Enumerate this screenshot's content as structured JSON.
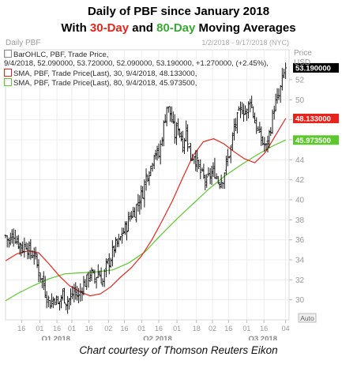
{
  "title": {
    "line1": "Daily of PBF since January 2018",
    "line2_pre": "With ",
    "line2_red": "30-Day",
    "line2_mid": " and ",
    "line2_green": "80-Day",
    "line2_post": " Moving Averages"
  },
  "header": {
    "symbol_label": "Daily PBF",
    "date_range": "1/2/2018 - 9/17/2018 (NYC)",
    "price_label": "Price",
    "currency_label": "USD"
  },
  "legend": {
    "bar_title": "BarOHLC, PBF, Trade Price,",
    "bar_values": "9/4/2018, 52.090000, 53.720000, 52.090000, 53.190000, +1.270000, (+2.45%),",
    "sma30": "SMA, PBF, Trade Price(Last), 30, 9/4/2018, 48.133000,",
    "sma80": "SMA, PBF, Trade Price(Last), 80, 9/4/2018, 45.973500,"
  },
  "colors": {
    "sma30": "#e8231b",
    "sma80": "#5cc82e",
    "bars": "#000000",
    "last_price_tag": "#000000"
  },
  "auto_label": "Auto",
  "caption": "Chart courtesy of Thomson Reuters Eikon",
  "chart_data": {
    "type": "ohlc",
    "y_ticks": [
      30,
      32,
      34,
      36,
      38,
      40,
      42,
      44,
      46,
      48,
      50,
      52
    ],
    "ylim": [
      28.0,
      55.0
    ],
    "x_ticks": [
      {
        "label": "16",
        "date": "2018-01-16"
      },
      {
        "label": "01",
        "date": "2018-02-01"
      },
      {
        "label": "16",
        "date": "2018-02-16"
      },
      {
        "label": "01",
        "date": "2018-03-01"
      },
      {
        "label": "16",
        "date": "2018-03-16"
      },
      {
        "label": "02",
        "date": "2018-04-02"
      },
      {
        "label": "16",
        "date": "2018-04-16"
      },
      {
        "label": "01",
        "date": "2018-05-01"
      },
      {
        "label": "16",
        "date": "2018-05-16"
      },
      {
        "label": "01",
        "date": "2018-06-01"
      },
      {
        "label": "18",
        "date": "2018-06-18"
      },
      {
        "label": "02",
        "date": "2018-07-02"
      },
      {
        "label": "16",
        "date": "2018-07-16"
      },
      {
        "label": "01",
        "date": "2018-08-01"
      },
      {
        "label": "16",
        "date": "2018-08-16"
      },
      {
        "label": "04",
        "date": "2018-09-04"
      }
    ],
    "quarters": [
      {
        "label": "Q1 2018",
        "date": "2018-02-15"
      },
      {
        "label": "Q2 2018",
        "date": "2018-05-15"
      },
      {
        "label": "Q3 2018",
        "date": "2018-08-15"
      }
    ],
    "price_tags": [
      {
        "name": "last",
        "value": 53.19,
        "label": "53.190000"
      },
      {
        "name": "sma30",
        "value": 48.133,
        "label": "48.133000"
      },
      {
        "name": "sma80",
        "value": 45.9735,
        "label": "45.973500"
      }
    ],
    "series": [
      {
        "name": "Trade Price (OHLC, approximate closes)",
        "points": [
          [
            "2018-01-02",
            36.4
          ],
          [
            "2018-01-05",
            35.8
          ],
          [
            "2018-01-09",
            36.6
          ],
          [
            "2018-01-12",
            35.9
          ],
          [
            "2018-01-17",
            35.2
          ],
          [
            "2018-01-20",
            35.6
          ],
          [
            "2018-01-24",
            34.5
          ],
          [
            "2018-01-27",
            34.7
          ],
          [
            "2018-01-31",
            32.8
          ],
          [
            "2018-02-03",
            32.0
          ],
          [
            "2018-02-07",
            30.4
          ],
          [
            "2018-02-10",
            29.6
          ],
          [
            "2018-02-14",
            30.3
          ],
          [
            "2018-02-17",
            29.5
          ],
          [
            "2018-02-21",
            30.6
          ],
          [
            "2018-02-24",
            29.9
          ],
          [
            "2018-02-28",
            30.1
          ],
          [
            "2018-03-03",
            30.9
          ],
          [
            "2018-03-07",
            30.3
          ],
          [
            "2018-03-10",
            31.4
          ],
          [
            "2018-03-14",
            31.9
          ],
          [
            "2018-03-17",
            32.7
          ],
          [
            "2018-03-21",
            32.1
          ],
          [
            "2018-03-24",
            32.8
          ],
          [
            "2018-03-28",
            31.8
          ],
          [
            "2018-03-31",
            33.3
          ],
          [
            "2018-04-04",
            34.2
          ],
          [
            "2018-04-07",
            35.2
          ],
          [
            "2018-04-11",
            35.7
          ],
          [
            "2018-04-14",
            36.6
          ],
          [
            "2018-04-18",
            37.4
          ],
          [
            "2018-04-21",
            38.4
          ],
          [
            "2018-04-25",
            38.9
          ],
          [
            "2018-04-28",
            39.8
          ],
          [
            "2018-05-02",
            40.8
          ],
          [
            "2018-05-05",
            42.4
          ],
          [
            "2018-05-09",
            43.3
          ],
          [
            "2018-05-12",
            44.9
          ],
          [
            "2018-05-16",
            44.4
          ],
          [
            "2018-05-19",
            46.4
          ],
          [
            "2018-05-23",
            49.4
          ],
          [
            "2018-05-26",
            48.6
          ],
          [
            "2018-05-30",
            46.5
          ],
          [
            "2018-06-02",
            47.4
          ],
          [
            "2018-06-06",
            45.6
          ],
          [
            "2018-06-09",
            47.0
          ],
          [
            "2018-06-13",
            44.2
          ],
          [
            "2018-06-16",
            44.6
          ],
          [
            "2018-06-20",
            43.1
          ],
          [
            "2018-06-23",
            42.4
          ],
          [
            "2018-06-27",
            41.7
          ],
          [
            "2018-06-30",
            42.5
          ],
          [
            "2018-07-04",
            42.8
          ],
          [
            "2018-07-07",
            41.9
          ],
          [
            "2018-07-11",
            42.2
          ],
          [
            "2018-07-14",
            43.6
          ],
          [
            "2018-07-18",
            45.1
          ],
          [
            "2018-07-21",
            47.2
          ],
          [
            "2018-07-25",
            48.5
          ],
          [
            "2018-07-28",
            49.2
          ],
          [
            "2018-08-01",
            48.7
          ],
          [
            "2018-08-04",
            50.2
          ],
          [
            "2018-08-08",
            47.8
          ],
          [
            "2018-08-11",
            46.8
          ],
          [
            "2018-08-15",
            45.7
          ],
          [
            "2018-08-18",
            45.2
          ],
          [
            "2018-08-22",
            47.3
          ],
          [
            "2018-08-25",
            49.3
          ],
          [
            "2018-08-29",
            50.3
          ],
          [
            "2018-09-01",
            51.9
          ],
          [
            "2018-09-04",
            53.19
          ]
        ]
      },
      {
        "name": "SMA 30",
        "points": [
          [
            "2018-01-02",
            33.9
          ],
          [
            "2018-01-12",
            34.6
          ],
          [
            "2018-01-22",
            34.9
          ],
          [
            "2018-01-31",
            34.7
          ],
          [
            "2018-02-09",
            33.6
          ],
          [
            "2018-02-18",
            32.4
          ],
          [
            "2018-02-27",
            31.4
          ],
          [
            "2018-03-08",
            30.8
          ],
          [
            "2018-03-17",
            30.4
          ],
          [
            "2018-03-26",
            30.6
          ],
          [
            "2018-04-04",
            31.3
          ],
          [
            "2018-04-13",
            32.3
          ],
          [
            "2018-04-22",
            33.2
          ],
          [
            "2018-05-01",
            34.4
          ],
          [
            "2018-05-10",
            36.0
          ],
          [
            "2018-05-19",
            37.9
          ],
          [
            "2018-05-28",
            39.9
          ],
          [
            "2018-06-06",
            42.2
          ],
          [
            "2018-06-15",
            44.4
          ],
          [
            "2018-06-24",
            45.8
          ],
          [
            "2018-07-03",
            46.1
          ],
          [
            "2018-07-12",
            45.6
          ],
          [
            "2018-07-21",
            44.8
          ],
          [
            "2018-07-30",
            44.1
          ],
          [
            "2018-08-08",
            43.7
          ],
          [
            "2018-08-17",
            44.7
          ],
          [
            "2018-08-26",
            46.4
          ],
          [
            "2018-09-04",
            48.133
          ]
        ]
      },
      {
        "name": "SMA 80",
        "points": [
          [
            "2018-01-02",
            29.9
          ],
          [
            "2018-01-12",
            30.6
          ],
          [
            "2018-01-26",
            31.4
          ],
          [
            "2018-02-09",
            32.1
          ],
          [
            "2018-02-23",
            32.6
          ],
          [
            "2018-03-09",
            32.7
          ],
          [
            "2018-03-23",
            32.8
          ],
          [
            "2018-04-06",
            33.0
          ],
          [
            "2018-04-20",
            33.7
          ],
          [
            "2018-05-04",
            34.8
          ],
          [
            "2018-05-18",
            36.5
          ],
          [
            "2018-06-01",
            38.1
          ],
          [
            "2018-06-15",
            39.6
          ],
          [
            "2018-06-29",
            41.1
          ],
          [
            "2018-07-13",
            42.4
          ],
          [
            "2018-07-27",
            43.5
          ],
          [
            "2018-08-10",
            44.5
          ],
          [
            "2018-08-24",
            45.4
          ],
          [
            "2018-09-04",
            45.9735
          ]
        ]
      }
    ]
  }
}
